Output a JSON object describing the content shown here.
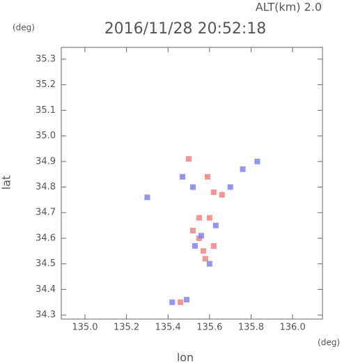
{
  "chart_data": {
    "type": "scatter",
    "title": "2016/11/28 20:52:18",
    "subtitle": "ALT(km) 2.0",
    "y_unit": "(deg)",
    "x_unit": "(deg)",
    "x_label": "lon",
    "y_label": "lat",
    "xlim": [
      134.886,
      136.144
    ],
    "ylim": [
      34.284,
      35.346
    ],
    "xticks": [
      {
        "value": 135,
        "label": "135.0"
      },
      135.2,
      135.4,
      135.6,
      135.8,
      {
        "value": 136,
        "label": "136.0"
      }
    ],
    "yticks": [
      34.3,
      34.4,
      34.5,
      34.6,
      34.7,
      34.8,
      34.9,
      {
        "value": 35,
        "label": "35.0"
      },
      35.1,
      35.2,
      35.3
    ],
    "series": [
      {
        "color": "#f07a7a",
        "x": [
          135.58,
          135.57,
          135.55,
          135.52,
          135.6,
          135.55,
          135.62,
          135.5,
          135.62,
          135.66,
          135.59,
          135.46
        ],
        "y": [
          34.52,
          34.55,
          34.6,
          34.63,
          34.68,
          34.68,
          34.57,
          34.91,
          34.78,
          34.77,
          34.84,
          34.35
        ]
      },
      {
        "color": "#7a7af0",
        "x": [
          135.3,
          135.47,
          135.52,
          135.56,
          135.63,
          135.53,
          135.7,
          135.76,
          135.83,
          135.42,
          135.49,
          135.6
        ],
        "y": [
          34.76,
          34.84,
          34.8,
          34.61,
          34.65,
          34.57,
          34.8,
          34.87,
          34.9,
          34.35,
          34.36,
          34.5
        ]
      }
    ]
  }
}
